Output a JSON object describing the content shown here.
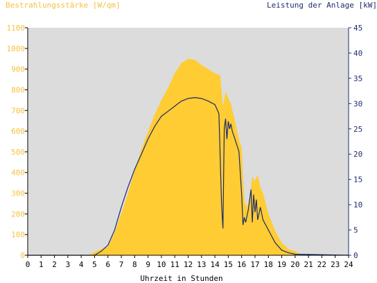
{
  "colors": {
    "irradiance": "#ffcc33",
    "power": "#1a2a66",
    "plot_background": "#dcdcdc",
    "left_axis_text": "#f5c242",
    "right_axis_text": "#1f2d6b"
  },
  "chart_data": {
    "type": "area",
    "title_left": "Bestrahlungsstärke [W/qm]",
    "title_right": "Leistung der Anlage [kW]",
    "xlabel": "Uhrzeit in Stunden",
    "xlim": [
      0,
      24
    ],
    "ylim_left": [
      0,
      1100
    ],
    "ylim_right": [
      0,
      45
    ],
    "x_ticks": [
      "0",
      "1",
      "2",
      "3",
      "4",
      "5",
      "6",
      "7",
      "8",
      "9",
      "10",
      "11",
      "12",
      "13",
      "14",
      "15",
      "16",
      "17",
      "18",
      "19",
      "20",
      "21",
      "22",
      "23",
      "24"
    ],
    "y_left_ticks": [
      "0",
      "100",
      "200",
      "300",
      "400",
      "500",
      "600",
      "700",
      "800",
      "900",
      "1000",
      "1100"
    ],
    "y_right_ticks": [
      "0",
      "5",
      "10",
      "15",
      "20",
      "25",
      "30",
      "35",
      "40",
      "45"
    ],
    "grid": false,
    "series": [
      {
        "name": "",
        "axis": "left",
        "kind": "area",
        "x": [
          0,
          4.5,
          5.0,
          5.5,
          6.0,
          6.5,
          7.0,
          7.5,
          8.0,
          8.5,
          9.0,
          9.5,
          10.0,
          10.5,
          11.0,
          11.5,
          12.0,
          12.5,
          13.0,
          13.5,
          14.0,
          14.4,
          14.6,
          14.8,
          15.0,
          15.2,
          15.5,
          15.8,
          16.0,
          16.2,
          16.4,
          16.6,
          16.8,
          17.0,
          17.2,
          17.4,
          17.6,
          18.0,
          18.5,
          19.0,
          19.5,
          20.0,
          20.5,
          24
        ],
        "values": [
          0,
          0,
          15,
          30,
          40,
          110,
          200,
          300,
          410,
          510,
          600,
          680,
          750,
          810,
          880,
          930,
          950,
          945,
          920,
          900,
          880,
          870,
          720,
          790,
          760,
          730,
          650,
          560,
          520,
          260,
          230,
          280,
          380,
          360,
          390,
          330,
          300,
          200,
          120,
          60,
          30,
          20,
          0,
          0
        ]
      },
      {
        "name": "",
        "axis": "right",
        "kind": "line",
        "x": [
          0,
          5.0,
          5.5,
          6.0,
          6.5,
          7.0,
          7.5,
          8.0,
          8.5,
          9.0,
          9.5,
          10.0,
          10.5,
          11.0,
          11.5,
          12.0,
          12.5,
          13.0,
          13.5,
          14.0,
          14.3,
          14.5,
          14.6,
          14.7,
          14.8,
          14.9,
          15.0,
          15.1,
          15.2,
          15.3,
          15.5,
          15.8,
          16.0,
          16.1,
          16.2,
          16.3,
          16.5,
          16.7,
          16.8,
          16.9,
          17.0,
          17.1,
          17.2,
          17.4,
          17.6,
          18.0,
          18.5,
          19.0,
          19.5,
          20.0,
          24
        ],
        "values": [
          0,
          0,
          0.8,
          2.0,
          5.0,
          9.5,
          13.5,
          17.0,
          20.0,
          23.0,
          25.5,
          27.5,
          28.5,
          29.5,
          30.5,
          31.0,
          31.2,
          31.0,
          30.5,
          29.8,
          28.0,
          10.0,
          5.3,
          25.0,
          27.0,
          23.0,
          26.5,
          25.0,
          26.0,
          24.5,
          23.0,
          20.5,
          12.0,
          6.0,
          7.5,
          6.5,
          9.0,
          13.0,
          6.5,
          12.0,
          8.5,
          11.0,
          7.0,
          9.5,
          7.0,
          5.0,
          2.5,
          1.0,
          0.5,
          0.2,
          0
        ]
      }
    ]
  }
}
